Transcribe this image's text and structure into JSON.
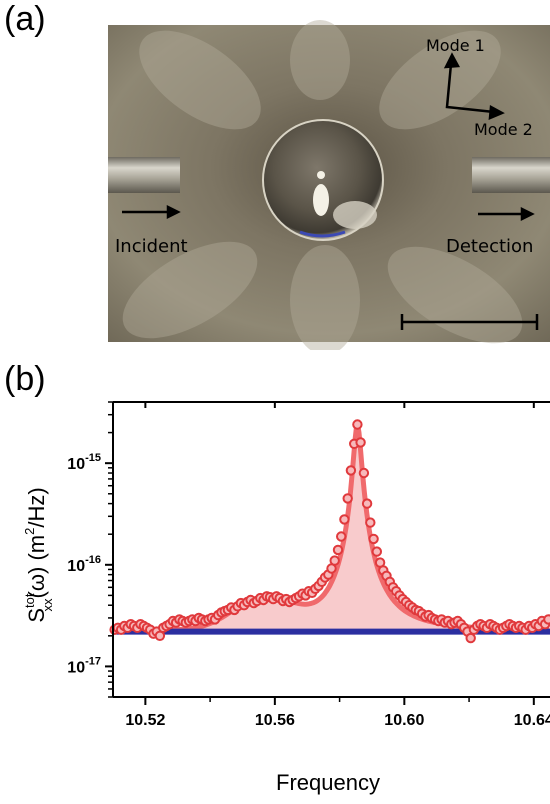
{
  "panel_a": {
    "label": "(a)",
    "mode1": "Mode 1",
    "mode2": "Mode 2",
    "incident": "Incident",
    "detection": "Detection"
  },
  "panel_b": {
    "label": "(b)"
  },
  "chart_data": {
    "type": "scatter",
    "xlabel": "Frequency",
    "ylabel_main": "S",
    "ylabel_sup": "tot",
    "ylabel_sub": "xx",
    "ylabel_rest": "(ω) (m",
    "ylabel_sup2": "2",
    "ylabel_end": "/Hz)",
    "x_range": [
      10.51,
      10.645
    ],
    "y_log": true,
    "y_range": [
      5e-18,
      4e-15
    ],
    "x_ticks": [
      "10.52",
      "10.56",
      "10.60",
      "10.64"
    ],
    "x_tick_values": [
      10.52,
      10.56,
      10.6,
      10.64
    ],
    "y_ticks": [
      {
        "base": "10",
        "exp": "-15",
        "value": 1e-15
      },
      {
        "base": "10",
        "exp": "-16",
        "value": 1e-16
      },
      {
        "base": "10",
        "exp": "-17",
        "value": 1e-17
      }
    ],
    "background_level": 2.2e-17,
    "fit": {
      "peak_x": 10.5855,
      "peak_y": 2.4e-15,
      "width": 0.0022,
      "background": 2.2e-17
    },
    "series": [
      {
        "kind": "measured",
        "color": "#e8474a",
        "fill": "#f3a8aa",
        "points": [
          [
            10.5105,
            2.3e-17
          ],
          [
            10.5115,
            2.4e-17
          ],
          [
            10.5125,
            2.3e-17
          ],
          [
            10.5135,
            2.5e-17
          ],
          [
            10.5145,
            2.4e-17
          ],
          [
            10.5155,
            2.6e-17
          ],
          [
            10.5165,
            2.5e-17
          ],
          [
            10.5175,
            2.4e-17
          ],
          [
            10.5185,
            2.6e-17
          ],
          [
            10.5195,
            2.5e-17
          ],
          [
            10.5205,
            2.4e-17
          ],
          [
            10.5215,
            2.3e-17
          ],
          [
            10.5225,
            2.1e-17
          ],
          [
            10.5235,
            2.2e-17
          ],
          [
            10.5245,
            2e-17
          ],
          [
            10.5255,
            2.4e-17
          ],
          [
            10.5265,
            2.5e-17
          ],
          [
            10.5275,
            2.6e-17
          ],
          [
            10.5285,
            2.8e-17
          ],
          [
            10.5295,
            2.7e-17
          ],
          [
            10.5305,
            2.9e-17
          ],
          [
            10.5315,
            2.8e-17
          ],
          [
            10.5325,
            2.7e-17
          ],
          [
            10.5335,
            2.8e-17
          ],
          [
            10.5345,
            2.9e-17
          ],
          [
            10.5355,
            2.8e-17
          ],
          [
            10.5365,
            3e-17
          ],
          [
            10.5375,
            2.9e-17
          ],
          [
            10.5385,
            2.8e-17
          ],
          [
            10.5395,
            2.9e-17
          ],
          [
            10.5405,
            3e-17
          ],
          [
            10.5415,
            2.9e-17
          ],
          [
            10.5425,
            3.2e-17
          ],
          [
            10.5435,
            3.4e-17
          ],
          [
            10.5445,
            3.5e-17
          ],
          [
            10.5455,
            3.6e-17
          ],
          [
            10.5465,
            3.8e-17
          ],
          [
            10.5475,
            3.6e-17
          ],
          [
            10.5485,
            3.9e-17
          ],
          [
            10.5495,
            4.2e-17
          ],
          [
            10.5505,
            4e-17
          ],
          [
            10.5515,
            4.3e-17
          ],
          [
            10.5525,
            4.5e-17
          ],
          [
            10.5535,
            4.2e-17
          ],
          [
            10.5545,
            4.4e-17
          ],
          [
            10.5555,
            4.7e-17
          ],
          [
            10.5565,
            4.5e-17
          ],
          [
            10.5575,
            4.9e-17
          ],
          [
            10.5585,
            4.8e-17
          ],
          [
            10.5595,
            4.6e-17
          ],
          [
            10.5605,
            4.9e-17
          ],
          [
            10.5615,
            4.7e-17
          ],
          [
            10.5625,
            4.4e-17
          ],
          [
            10.5635,
            4.6e-17
          ],
          [
            10.5645,
            4.3e-17
          ],
          [
            10.5655,
            4.5e-17
          ],
          [
            10.5665,
            4.7e-17
          ],
          [
            10.5675,
            4.9e-17
          ],
          [
            10.5685,
            5.2e-17
          ],
          [
            10.5695,
            5e-17
          ],
          [
            10.5705,
            5.5e-17
          ],
          [
            10.5715,
            5.3e-17
          ],
          [
            10.5725,
            5.8e-17
          ],
          [
            10.5735,
            6.2e-17
          ],
          [
            10.5745,
            6.8e-17
          ],
          [
            10.5755,
            7.5e-17
          ],
          [
            10.5765,
            8e-17
          ],
          [
            10.5775,
            9.2e-17
          ],
          [
            10.5785,
            1.1e-16
          ],
          [
            10.5795,
            1.4e-16
          ],
          [
            10.5805,
            1.9e-16
          ],
          [
            10.5815,
            2.8e-16
          ],
          [
            10.5825,
            4.5e-16
          ],
          [
            10.5835,
            8.5e-16
          ],
          [
            10.5845,
            1.55e-15
          ],
          [
            10.5855,
            2.4e-15
          ],
          [
            10.5865,
            1.6e-15
          ],
          [
            10.5875,
            8e-16
          ],
          [
            10.5885,
            4e-16
          ],
          [
            10.5895,
            2.6e-16
          ],
          [
            10.5905,
            1.8e-16
          ],
          [
            10.5915,
            1.35e-16
          ],
          [
            10.5925,
            1.05e-16
          ],
          [
            10.5935,
            8.8e-17
          ],
          [
            10.5945,
            7.8e-17
          ],
          [
            10.5955,
            6.8e-17
          ],
          [
            10.5965,
            6e-17
          ],
          [
            10.5975,
            5.5e-17
          ],
          [
            10.5985,
            5e-17
          ],
          [
            10.5995,
            4.6e-17
          ],
          [
            10.6005,
            4.3e-17
          ],
          [
            10.6015,
            4e-17
          ],
          [
            10.6025,
            3.8e-17
          ],
          [
            10.6035,
            3.6e-17
          ],
          [
            10.6045,
            3.5e-17
          ],
          [
            10.6055,
            3.3e-17
          ],
          [
            10.6065,
            3.1e-17
          ],
          [
            10.6075,
            3.2e-17
          ],
          [
            10.6085,
            3e-17
          ],
          [
            10.6095,
            2.9e-17
          ],
          [
            10.6105,
            2.8e-17
          ],
          [
            10.6115,
            2.9e-17
          ],
          [
            10.6125,
            2.7e-17
          ],
          [
            10.6135,
            2.8e-17
          ],
          [
            10.6145,
            2.6e-17
          ],
          [
            10.6155,
            2.7e-17
          ],
          [
            10.6165,
            2.8e-17
          ],
          [
            10.6175,
            2.6e-17
          ],
          [
            10.6185,
            2.4e-17
          ],
          [
            10.6195,
            2.2e-17
          ],
          [
            10.6205,
            1.9e-17
          ],
          [
            10.6215,
            2.3e-17
          ],
          [
            10.6225,
            2.5e-17
          ],
          [
            10.6235,
            2.6e-17
          ],
          [
            10.6245,
            2.5e-17
          ],
          [
            10.6255,
            2.4e-17
          ],
          [
            10.6265,
            2.6e-17
          ],
          [
            10.6275,
            2.5e-17
          ],
          [
            10.6285,
            2.4e-17
          ],
          [
            10.6295,
            2.3e-17
          ],
          [
            10.6305,
            2.4e-17
          ],
          [
            10.6315,
            2.5e-17
          ],
          [
            10.6325,
            2.6e-17
          ],
          [
            10.6335,
            2.5e-17
          ],
          [
            10.6345,
            2.4e-17
          ],
          [
            10.6355,
            2.5e-17
          ],
          [
            10.6365,
            2.4e-17
          ],
          [
            10.6375,
            2.3e-17
          ],
          [
            10.6385,
            2.5e-17
          ],
          [
            10.6395,
            2.4e-17
          ],
          [
            10.6405,
            2.6e-17
          ],
          [
            10.6415,
            2.5e-17
          ],
          [
            10.6425,
            2.8e-17
          ],
          [
            10.6435,
            2.6e-17
          ],
          [
            10.6445,
            2.9e-17
          ]
        ]
      }
    ],
    "colors": {
      "background_line": "#2b2fa0",
      "marker_edge": "#e0393c",
      "marker_face": "#f7b9bb",
      "fit_line": "#f06a6c"
    }
  }
}
